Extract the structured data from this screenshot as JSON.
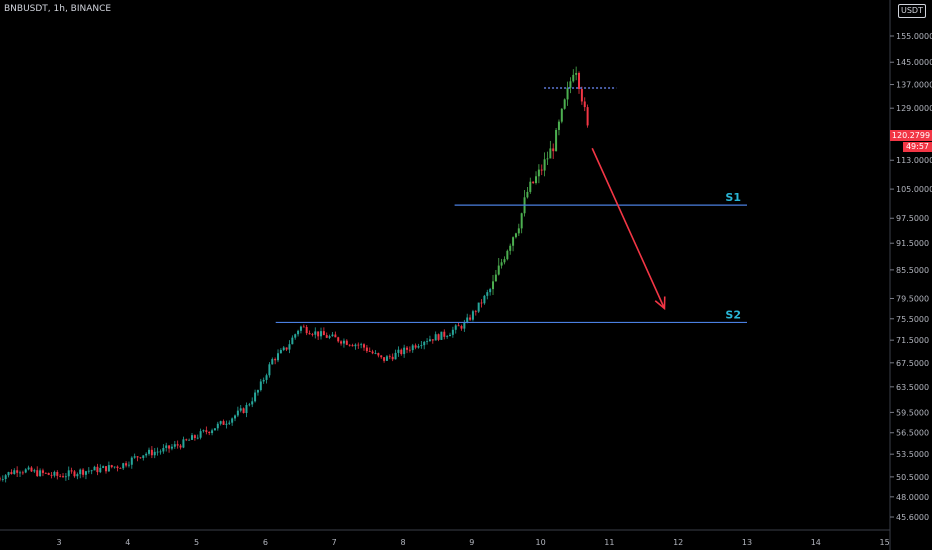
{
  "header": {
    "symbol": "BNBUSDT, 1h, BINANCE",
    "currency": "USDT"
  },
  "colors": {
    "up": "#26a69a",
    "up_bright": "#4caf50",
    "down": "#f23645",
    "line": "#4a7fe0",
    "arrow": "#f23645",
    "label": "#29b6d6",
    "dotted": "#6f8fff"
  },
  "chart_data": {
    "type": "candlestick",
    "x_label_list": [
      "3",
      "4",
      "5",
      "6",
      "7",
      "8",
      "9",
      "10",
      "11",
      "12",
      "13",
      "14",
      "15"
    ],
    "y_ticks": [
      155.0,
      145.0,
      137.0,
      129.0,
      120.0,
      113.0,
      105.0,
      97.5,
      91.5,
      85.5,
      79.5,
      75.5,
      71.5,
      67.5,
      63.5,
      59.5,
      56.5,
      53.5,
      50.5,
      48.0,
      45.6
    ],
    "y_tick_labels": [
      "155.0000",
      "145.0000",
      "137.0000",
      "129.0000",
      "120.0000",
      "113.0000",
      "105.0000",
      "97.5000",
      "91.5000",
      "85.5000",
      "79.5000",
      "75.5000",
      "71.5000",
      "67.5000",
      "63.5000",
      "59.5000",
      "56.5000",
      "53.5000",
      "50.5000",
      "48.0000",
      "45.6000"
    ],
    "y_scale": "log",
    "last_price": 120.2799,
    "last_price_label": "120.2799",
    "countdown": "49:57",
    "trend_path": [
      [
        2.1,
        50.3
      ],
      [
        2.4,
        51.5
      ],
      [
        2.7,
        51.0
      ],
      [
        3.0,
        50.6
      ],
      [
        3.3,
        51.2
      ],
      [
        3.6,
        51.5
      ],
      [
        3.9,
        52.0
      ],
      [
        4.2,
        53.5
      ],
      [
        4.5,
        54.0
      ],
      [
        4.8,
        55.0
      ],
      [
        5.1,
        56.5
      ],
      [
        5.4,
        58.0
      ],
      [
        5.7,
        60.0
      ],
      [
        5.9,
        63.0
      ],
      [
        6.1,
        68.0
      ],
      [
        6.3,
        70.0
      ],
      [
        6.5,
        74.0
      ],
      [
        6.8,
        72.5
      ],
      [
        7.1,
        71.5
      ],
      [
        7.4,
        70.5
      ],
      [
        7.7,
        68.0
      ],
      [
        8.0,
        69.5
      ],
      [
        8.3,
        71.5
      ],
      [
        8.6,
        72.5
      ],
      [
        8.9,
        74.5
      ],
      [
        9.1,
        78.0
      ],
      [
        9.3,
        82.0
      ],
      [
        9.5,
        90.0
      ],
      [
        9.7,
        97.0
      ],
      [
        9.8,
        104.0
      ],
      [
        10.0,
        110.0
      ],
      [
        10.2,
        118.0
      ],
      [
        10.4,
        135.0
      ],
      [
        10.5,
        145.0
      ],
      [
        10.6,
        133.0
      ],
      [
        10.7,
        120.3
      ]
    ],
    "levels": [
      {
        "name": "S1",
        "price": 100.8,
        "x_start": 8.75,
        "x_end": 13.0
      },
      {
        "name": "S2",
        "price": 74.8,
        "x_start": 6.15,
        "x_end": 13.0
      }
    ],
    "resistance_dotted": {
      "price": 135.8,
      "x_start": 10.05,
      "x_end": 11.1
    },
    "arrow": {
      "from": [
        10.75,
        116.5
      ],
      "to": [
        11.8,
        77.5
      ]
    }
  }
}
